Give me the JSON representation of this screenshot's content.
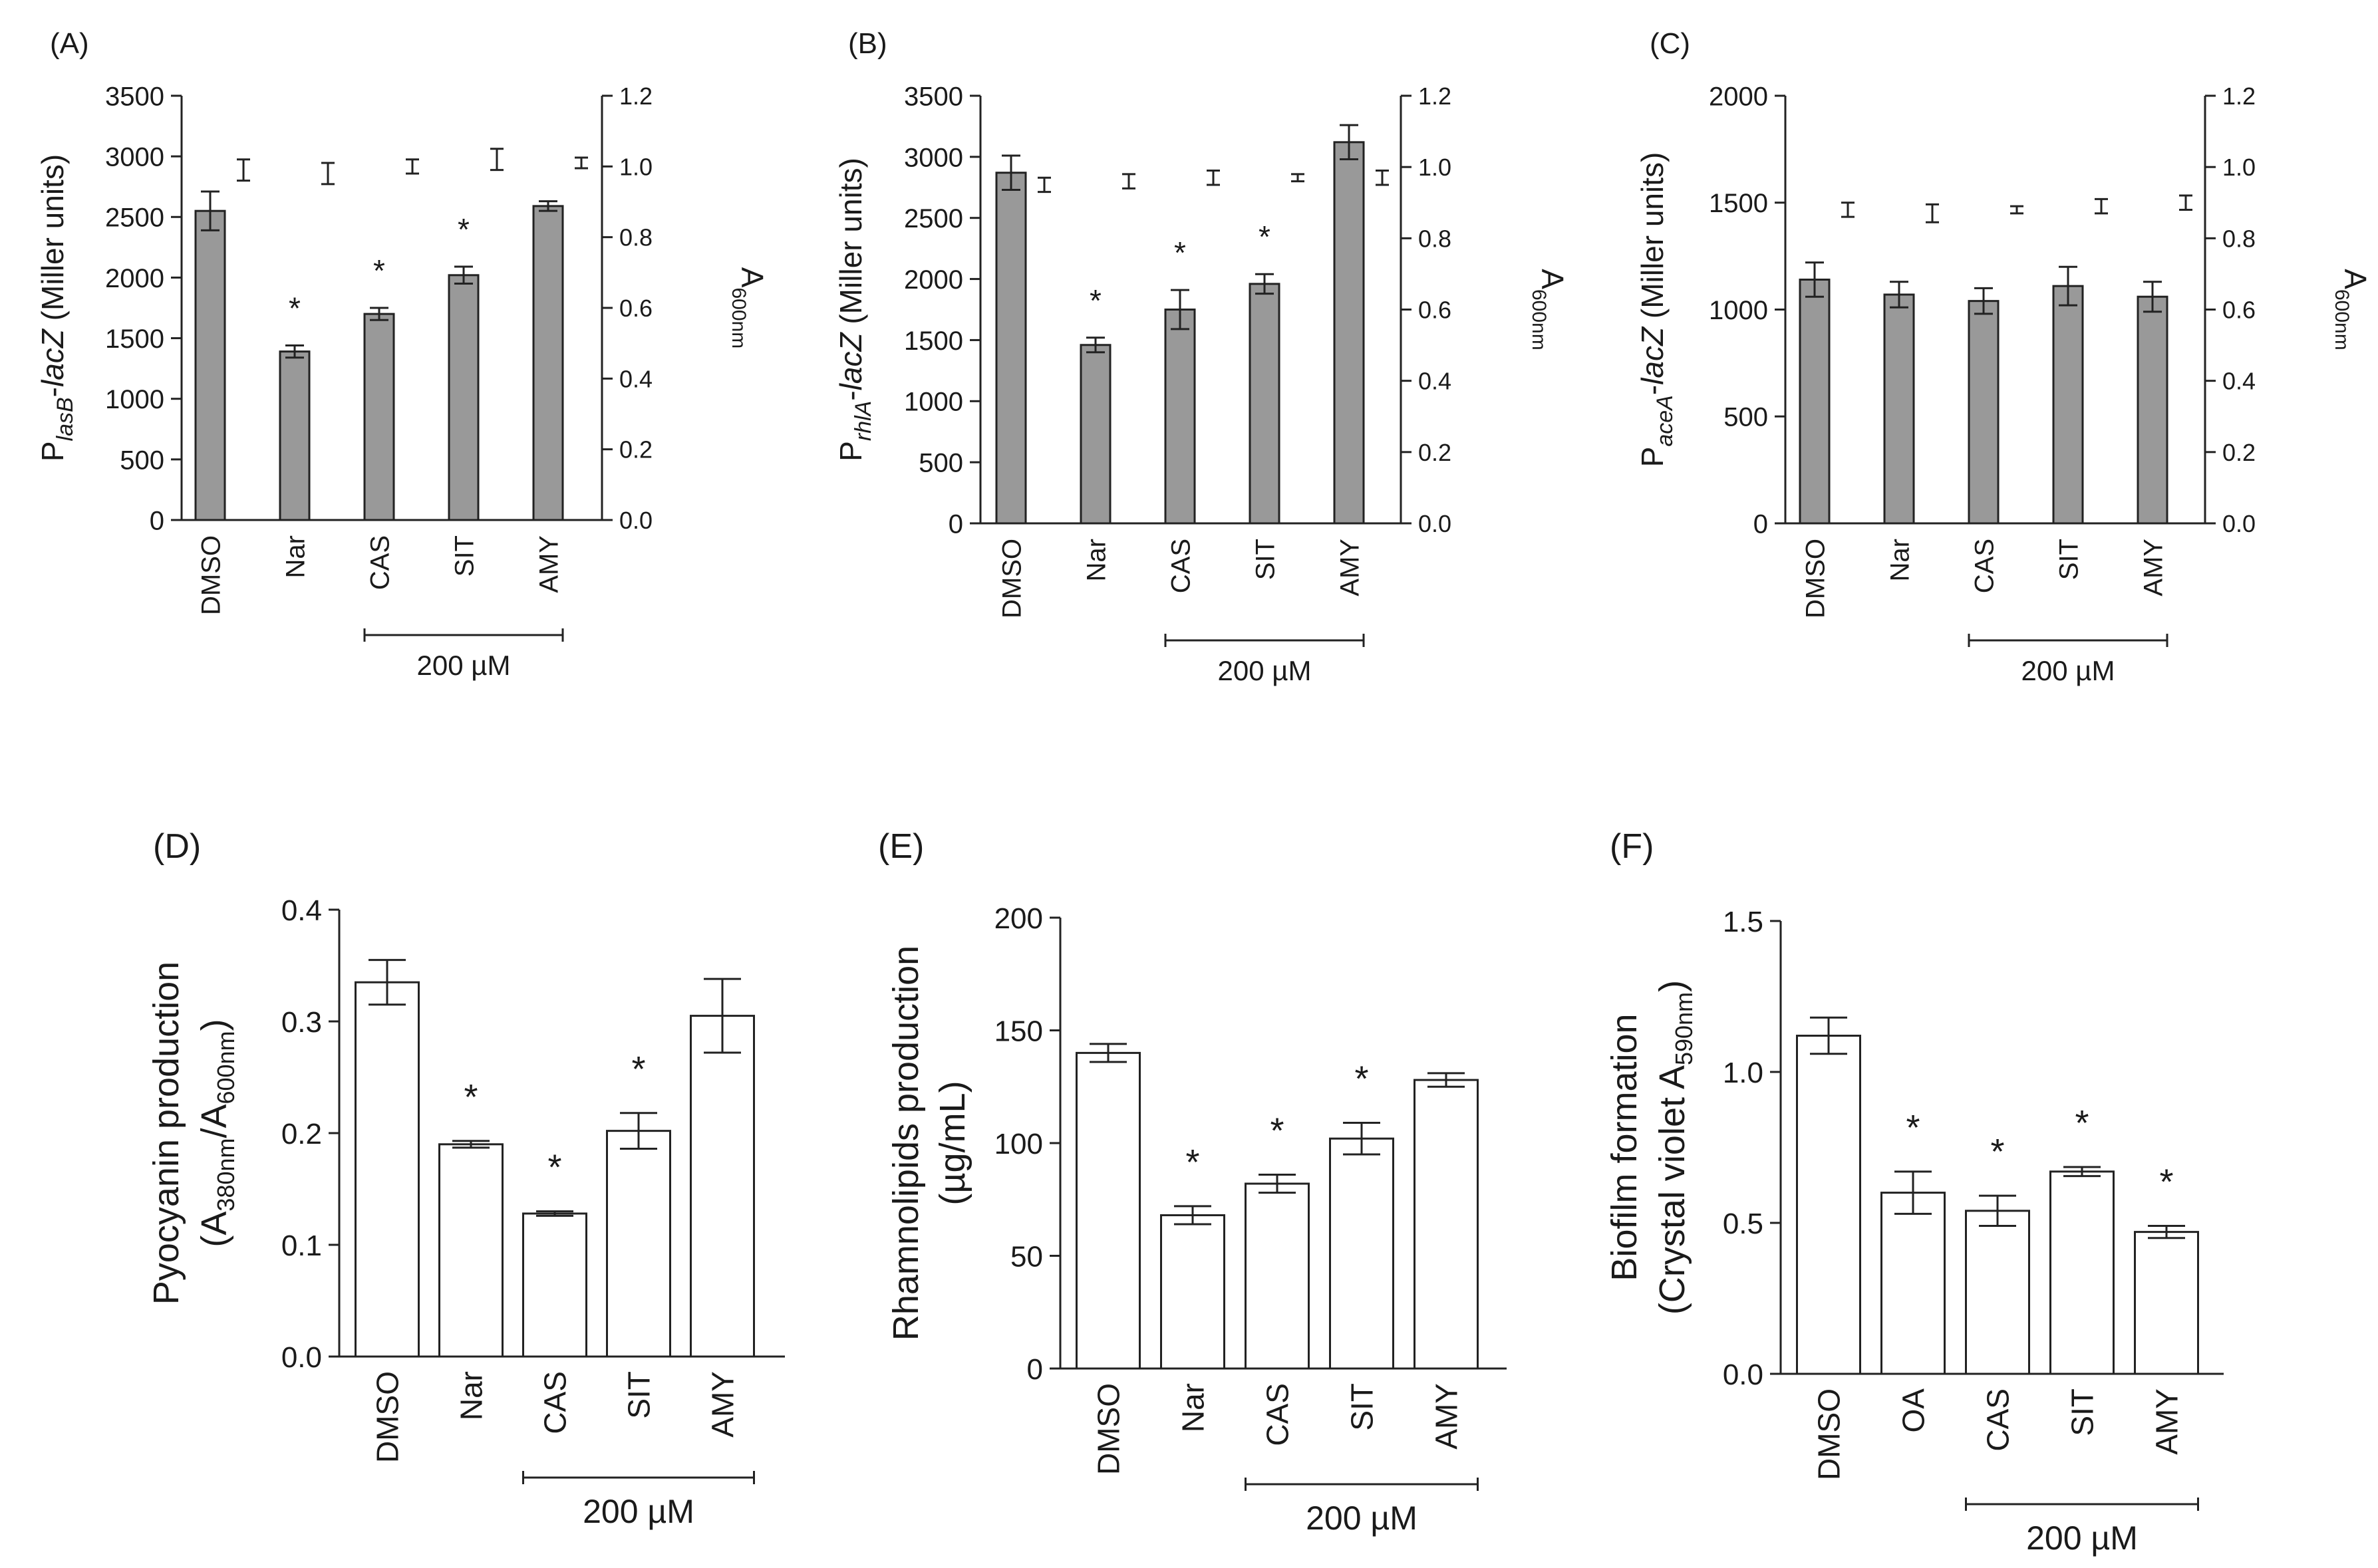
{
  "chart_data": [
    {
      "id": "A",
      "type": "bar",
      "panel_label": "(A)",
      "bar_style": "grey",
      "ylabel_main": "P",
      "ylabel_sub": "lasB",
      "ylabel_rest": "-lacZ (Miller units)",
      "y2label_main": "A",
      "y2label_sub": "600nm",
      "categories": [
        "DMSO",
        "Nar",
        "CAS",
        "SIT",
        "AMY"
      ],
      "values": [
        2550,
        1390,
        1700,
        2020,
        2590
      ],
      "errors": [
        160,
        50,
        50,
        70,
        40
      ],
      "significant": [
        false,
        true,
        true,
        true,
        false
      ],
      "star_label": "*",
      "ylim": [
        0,
        3500
      ],
      "yticks": [
        0,
        500,
        1000,
        1500,
        2000,
        2500,
        3000,
        3500
      ],
      "ytick_labels": [
        "0",
        "500",
        "1000",
        "1500",
        "2000",
        "2500",
        "3000",
        "3500"
      ],
      "y2lim": [
        0,
        1.2
      ],
      "y2ticks": [
        0,
        0.2,
        0.4,
        0.6,
        0.8,
        1.0,
        1.2
      ],
      "y2tick_labels": [
        "0.0",
        "0.2",
        "0.4",
        "0.6",
        "0.8",
        "1.0",
        "1.2"
      ],
      "y2_values": [
        0.99,
        0.98,
        1.0,
        1.02,
        1.01
      ],
      "y2_errors": [
        0.03,
        0.03,
        0.02,
        0.03,
        0.015
      ],
      "bracket_label": "200 µM",
      "bracket_range": [
        2,
        4
      ]
    },
    {
      "id": "B",
      "type": "bar",
      "panel_label": "(B)",
      "bar_style": "grey",
      "ylabel_main": "P",
      "ylabel_sub": "rhlA",
      "ylabel_rest": "-lacZ (Miller units)",
      "y2label_main": "A",
      "y2label_sub": "600nm",
      "categories": [
        "DMSO",
        "Nar",
        "CAS",
        "SIT",
        "AMY"
      ],
      "values": [
        2870,
        1460,
        1750,
        1960,
        3120
      ],
      "errors": [
        140,
        60,
        160,
        80,
        140
      ],
      "significant": [
        false,
        true,
        true,
        true,
        false
      ],
      "star_label": "*",
      "ylim": [
        0,
        3500
      ],
      "yticks": [
        0,
        500,
        1000,
        1500,
        2000,
        2500,
        3000,
        3500
      ],
      "ytick_labels": [
        "0",
        "500",
        "1000",
        "1500",
        "2000",
        "2500",
        "3000",
        "3500"
      ],
      "y2lim": [
        0,
        1.2
      ],
      "y2ticks": [
        0,
        0.2,
        0.4,
        0.6,
        0.8,
        1.0,
        1.2
      ],
      "y2tick_labels": [
        "0.0",
        "0.2",
        "0.4",
        "0.6",
        "0.8",
        "1.0",
        "1.2"
      ],
      "y2_values": [
        0.95,
        0.96,
        0.97,
        0.97,
        0.97
      ],
      "y2_errors": [
        0.02,
        0.02,
        0.02,
        0.01,
        0.02
      ],
      "bracket_label": "200 µM",
      "bracket_range": [
        2,
        4
      ]
    },
    {
      "id": "C",
      "type": "bar",
      "panel_label": "(C)",
      "bar_style": "grey",
      "ylabel_main": "P",
      "ylabel_sub": "aceA",
      "ylabel_rest": "-lacZ (Miller units)",
      "y2label_main": "A",
      "y2label_sub": "600nm",
      "categories": [
        "DMSO",
        "Nar",
        "CAS",
        "SIT",
        "AMY"
      ],
      "values": [
        1140,
        1070,
        1040,
        1110,
        1060
      ],
      "errors": [
        80,
        60,
        60,
        90,
        70
      ],
      "significant": [
        false,
        false,
        false,
        false,
        false
      ],
      "star_label": "*",
      "ylim": [
        0,
        2000
      ],
      "yticks": [
        0,
        500,
        1000,
        1500,
        2000
      ],
      "ytick_labels": [
        "0",
        "500",
        "1000",
        "1500",
        "2000"
      ],
      "y2lim": [
        0,
        1.2
      ],
      "y2ticks": [
        0,
        0.2,
        0.4,
        0.6,
        0.8,
        1.0,
        1.2
      ],
      "y2tick_labels": [
        "0.0",
        "0.2",
        "0.4",
        "0.6",
        "0.8",
        "1.0",
        "1.2"
      ],
      "y2_values": [
        0.88,
        0.87,
        0.88,
        0.89,
        0.9
      ],
      "y2_errors": [
        0.02,
        0.025,
        0.01,
        0.02,
        0.02
      ],
      "bracket_label": "200 µM",
      "bracket_range": [
        2,
        4
      ]
    },
    {
      "id": "D",
      "type": "bar",
      "panel_label": "(D)",
      "bar_style": "white",
      "ylabel_line1": "Pyocyanin production",
      "ylabel_line2_parts": [
        "(A",
        "380nm",
        "/A",
        "600nm",
        ")"
      ],
      "categories": [
        "DMSO",
        "Nar",
        "CAS",
        "SIT",
        "AMY"
      ],
      "values": [
        0.335,
        0.19,
        0.128,
        0.202,
        0.305
      ],
      "errors": [
        0.02,
        0.003,
        0.002,
        0.016,
        0.033
      ],
      "significant": [
        false,
        true,
        true,
        true,
        false
      ],
      "star_label": "*",
      "ylim": [
        0,
        0.4
      ],
      "yticks": [
        0,
        0.1,
        0.2,
        0.3,
        0.4
      ],
      "ytick_labels": [
        "0.0",
        "0.1",
        "0.2",
        "0.3",
        "0.4"
      ],
      "bracket_label": "200 µM",
      "bracket_range": [
        2,
        4
      ]
    },
    {
      "id": "E",
      "type": "bar",
      "panel_label": "(E)",
      "bar_style": "white",
      "ylabel_line1": "Rhamnolipids production",
      "ylabel_line2_parts": [
        "(µg/mL)"
      ],
      "categories": [
        "DMSO",
        "Nar",
        "CAS",
        "SIT",
        "AMY"
      ],
      "values": [
        140,
        68,
        82,
        102,
        128
      ],
      "errors": [
        4,
        4,
        4,
        7,
        3
      ],
      "significant": [
        false,
        true,
        true,
        true,
        false
      ],
      "star_label": "*",
      "ylim": [
        0,
        200
      ],
      "yticks": [
        0,
        50,
        100,
        150,
        200
      ],
      "ytick_labels": [
        "0",
        "50",
        "100",
        "150",
        "200"
      ],
      "bracket_label": "200 µM",
      "bracket_range": [
        2,
        4
      ]
    },
    {
      "id": "F",
      "type": "bar",
      "panel_label": "(F)",
      "bar_style": "white",
      "ylabel_line1": "Biofilm formation",
      "ylabel_line2_parts": [
        "(Crystal violet A",
        "590nm",
        ")"
      ],
      "categories": [
        "DMSO",
        "OA",
        "CAS",
        "SIT",
        "AMY"
      ],
      "values": [
        1.12,
        0.6,
        0.54,
        0.67,
        0.47
      ],
      "errors": [
        0.06,
        0.07,
        0.05,
        0.015,
        0.02
      ],
      "significant": [
        false,
        true,
        true,
        true,
        true
      ],
      "star_label": "*",
      "ylim": [
        0,
        1.5
      ],
      "yticks": [
        0,
        0.5,
        1.0,
        1.5
      ],
      "ytick_labels": [
        "0.0",
        "0.5",
        "1.0",
        "1.5"
      ],
      "bracket_label": "200 µM",
      "bracket_range": [
        2,
        4
      ]
    }
  ]
}
